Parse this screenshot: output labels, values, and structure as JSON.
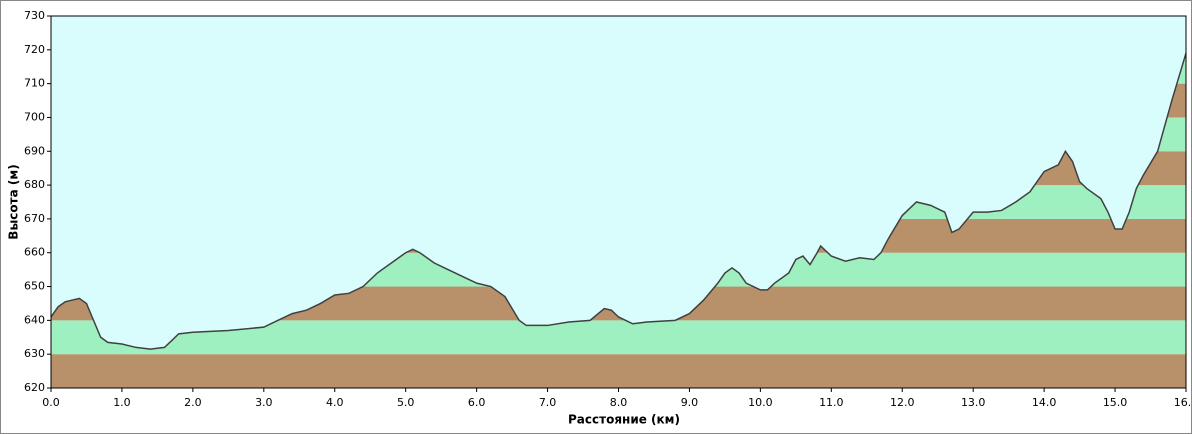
{
  "chart_data": {
    "type": "area",
    "ylabel": "Высота (м)",
    "xlabel": "Расстояние  (км)",
    "x": [
      0.0,
      0.1,
      0.2,
      0.3,
      0.4,
      0.5,
      0.6,
      0.7,
      0.8,
      1.0,
      1.2,
      1.4,
      1.6,
      1.7,
      1.8,
      2.0,
      2.5,
      3.0,
      3.2,
      3.4,
      3.6,
      3.8,
      4.0,
      4.2,
      4.4,
      4.6,
      4.8,
      5.0,
      5.1,
      5.2,
      5.4,
      5.6,
      5.8,
      6.0,
      6.2,
      6.4,
      6.6,
      6.7,
      7.0,
      7.3,
      7.6,
      7.8,
      7.9,
      8.0,
      8.2,
      8.4,
      8.8,
      9.0,
      9.2,
      9.4,
      9.5,
      9.6,
      9.7,
      9.8,
      10.0,
      10.1,
      10.2,
      10.4,
      10.5,
      10.6,
      10.7,
      10.8,
      10.85,
      11.0,
      11.2,
      11.4,
      11.6,
      11.7,
      11.8,
      12.0,
      12.2,
      12.4,
      12.6,
      12.7,
      12.8,
      13.0,
      13.2,
      13.4,
      13.6,
      13.8,
      14.0,
      14.2,
      14.3,
      14.4,
      14.5,
      14.6,
      14.8,
      14.9,
      15.0,
      15.1,
      15.2,
      15.3,
      15.4,
      15.6,
      15.8,
      16.0
    ],
    "series": [
      {
        "name": "Высота",
        "color": "#404040",
        "values": [
          641,
          644,
          645.5,
          646,
          646.5,
          645,
          640,
          635,
          633.5,
          633,
          632,
          631.5,
          632,
          634,
          636,
          636.5,
          637,
          638,
          640,
          642,
          643,
          645,
          647.5,
          648,
          650,
          654,
          657,
          660,
          661,
          660,
          657,
          655,
          653,
          651,
          650,
          647,
          640,
          638.5,
          638.5,
          639.5,
          640,
          643.5,
          643,
          641,
          639,
          639.5,
          640,
          642,
          646,
          651,
          654,
          655.5,
          654,
          651,
          649,
          649,
          651,
          654,
          658,
          659,
          656.5,
          660,
          662,
          659,
          657.5,
          658.5,
          658,
          660,
          664,
          671,
          675,
          674,
          672,
          666,
          667,
          672,
          672,
          672.5,
          675,
          678,
          684,
          686,
          690,
          687,
          681,
          679,
          676,
          672,
          667,
          667,
          672,
          679,
          683,
          690,
          705,
          719
        ]
      }
    ],
    "band_colors": [
      "#b8906a",
      "#9ff0c0"
    ],
    "background": "#d9fdfd",
    "xlim": [
      0,
      16
    ],
    "ylim": [
      620,
      730
    ],
    "xticks": [
      {
        "value": 0,
        "label": "0.0"
      },
      {
        "value": 1,
        "label": "1.0"
      },
      {
        "value": 2,
        "label": "2.0"
      },
      {
        "value": 3,
        "label": "3.0"
      },
      {
        "value": 4,
        "label": "4.0"
      },
      {
        "value": 5,
        "label": "5.0"
      },
      {
        "value": 6,
        "label": "6.0"
      },
      {
        "value": 7,
        "label": "7.0"
      },
      {
        "value": 8,
        "label": "8.0"
      },
      {
        "value": 9,
        "label": "9.0"
      },
      {
        "value": 10,
        "label": "10.0"
      },
      {
        "value": 11,
        "label": "11.0"
      },
      {
        "value": 12,
        "label": "12.0"
      },
      {
        "value": 13,
        "label": "13.0"
      },
      {
        "value": 14,
        "label": "14.0"
      },
      {
        "value": 15,
        "label": "15.0"
      },
      {
        "value": 16,
        "label": "16.0"
      }
    ],
    "yticks": [
      620,
      630,
      640,
      650,
      660,
      670,
      680,
      690,
      700,
      710,
      720,
      730
    ]
  }
}
